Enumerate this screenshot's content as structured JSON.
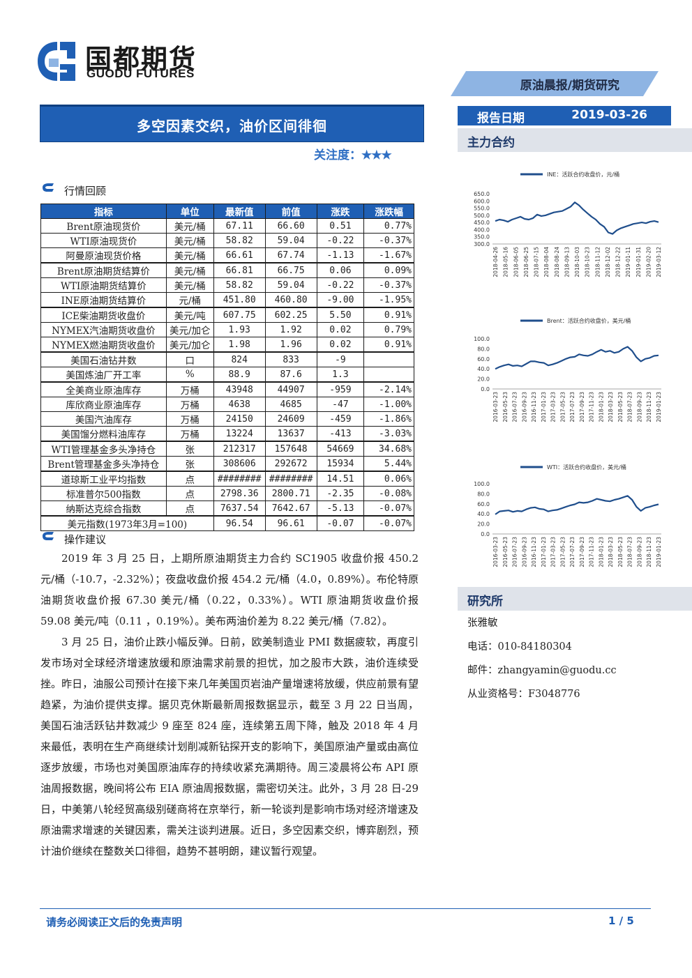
{
  "brand": {
    "name_cn": "国都期货",
    "name_en": "GUODU FUTURES"
  },
  "header": {
    "category": "原油晨报/期货研究",
    "report_title": "多空因素交织，油价区间徘徊",
    "attention_label": "关注度：",
    "attention_stars": "★★★",
    "date_label": "报告日期",
    "date_value": "2019-03-26"
  },
  "sections": {
    "market_review": "行情回顾",
    "operation_advice": "操作建议",
    "main_contract": "主力合约",
    "research": "研究所"
  },
  "table": {
    "headers": [
      "指标",
      "单位",
      "最新值",
      "前值",
      "涨跌",
      "涨跌幅"
    ],
    "rows": [
      [
        "Brent原油现货价",
        "美元/桶",
        "67.11",
        "66.60",
        "0.51",
        "0.77%"
      ],
      [
        "WTI原油现货价",
        "美元/桶",
        "58.82",
        "59.04",
        "-0.22",
        "-0.37%"
      ],
      [
        "阿曼原油现货价格",
        "美元/桶",
        "66.61",
        "67.74",
        "-1.13",
        "-1.67%"
      ],
      [
        "Brent原油期货结算价",
        "美元/桶",
        "66.81",
        "66.75",
        "0.06",
        "0.09%"
      ],
      [
        "WTI原油期货结算价",
        "美元/桶",
        "58.82",
        "59.04",
        "-0.22",
        "-0.37%"
      ],
      [
        "INE原油期货结算价",
        "元/桶",
        "451.80",
        "460.80",
        "-9.00",
        "-1.95%"
      ],
      [
        "ICE柴油期货收盘价",
        "美元/吨",
        "607.75",
        "602.25",
        "5.50",
        "0.91%"
      ],
      [
        "NYMEX汽油期货收盘价",
        "美元/加仑",
        "1.93",
        "1.92",
        "0.02",
        "0.79%"
      ],
      [
        "NYMEX燃油期货收盘价",
        "美元/加仑",
        "1.98",
        "1.96",
        "0.02",
        "0.91%"
      ],
      [
        "美国石油钻井数",
        "口",
        "824",
        "833",
        "-9",
        ""
      ],
      [
        "美国炼油厂开工率",
        "%",
        "88.9",
        "87.6",
        "1.3",
        ""
      ],
      [
        "全美商业原油库存",
        "万桶",
        "43948",
        "44907",
        "-959",
        "-2.14%"
      ],
      [
        "库欣商业原油库存",
        "万桶",
        "4638",
        "4685",
        "-47",
        "-1.00%"
      ],
      [
        "美国汽油库存",
        "万桶",
        "24150",
        "24609",
        "-459",
        "-1.86%"
      ],
      [
        "美国馏分燃料油库存",
        "万桶",
        "13224",
        "13637",
        "-413",
        "-3.03%"
      ],
      [
        "WTI管理基金多头净持仓",
        "张",
        "212317",
        "157648",
        "54669",
        "34.68%"
      ],
      [
        "Brent管理基金多头净持仓",
        "张",
        "308606",
        "292672",
        "15934",
        "5.44%"
      ],
      [
        "道琼斯工业平均指数",
        "点",
        "########",
        "########",
        "14.51",
        "0.06%"
      ],
      [
        "标准普尔500指数",
        "点",
        "2798.36",
        "2800.71",
        "-2.35",
        "-0.08%"
      ],
      [
        "纳斯达克综合指数",
        "点",
        "7637.54",
        "7642.67",
        "-5.13",
        "-0.07%"
      ]
    ],
    "last_row": [
      "美元指数(1973年3月=100)",
      "96.54",
      "96.61",
      "-0.07",
      "-0.07%"
    ]
  },
  "advice_paragraphs": [
    "2019 年 3 月 25 日，上期所原油期货主力合约 SC1905 收盘价报 450.2 元/桶（-10.7，-2.32%）；夜盘收盘价报 454.2 元/桶（4.0，0.89%）。布伦特原油期货收盘价报 67.30 美元/桶（0.22，0.33%）。WTI 原油期货收盘价报 59.08 美元/吨（0.11 ，0.19%）。美布两油价差为 8.22 美元/桶（7.82）。",
    "3 月 25 日，油价止跌小幅反弹。日前，欧美制造业 PMI 数据疲软，再度引发市场对全球经济增速放缓和原油需求前景的担忧，加之股市大跌，油价连续受挫。昨日，油服公司预计在接下来几年美国页岩油产量增速将放缓，供应前景有望趋紧，为油价提供支撑。据贝克休斯最新周报数据显示，截至 3 月 22 日当周，美国石油活跃钻井数减少 9 座至 824 座，连续第五周下降，触及 2018 年 4 月来最低，表明在生产商继续计划削减新钻探开支的影响下，美国原油产量或由高位逐步放缓，市场也对美国原油库存的持续收紧充满期待。周三凌晨将公布 API 原油周报数据，晚间将公布 EIA 原油周报数据，需密切关注。此外，3 月 28 日-29 日，中美第八轮经贸高级别磋商将在京举行，新一轮谈判是影响市场对经济增速及原油需求增速的关键因素，需关注谈判进展。近日，多空因素交织，博弈剧烈，预计油价继续在整数关口徘徊，趋势不甚明朗，建议暂行观望。"
  ],
  "contact": {
    "name": "张雅敏",
    "phone": "电话：010-84180304",
    "email": "邮件：zhangyamin@guodu.cc",
    "license": "从业资格号：F3048776"
  },
  "footer": {
    "disclaimer": "请务必阅读正文后的免责声明",
    "page": "1 / 5"
  },
  "colors": {
    "brand_blue": "#1f5fb4",
    "light_blue": "#8eb4e3",
    "line": "#1f4e8c"
  },
  "chart_data": [
    {
      "type": "line",
      "legend": "INE：活跃合约收盘价，元/桶",
      "ylim": [
        300,
        650
      ],
      "yticks": [
        "650.0",
        "600.0",
        "550.0",
        "500.0",
        "450.0",
        "400.0",
        "350.0",
        "300.0"
      ],
      "xticks": [
        "2018-04-26",
        "2018-05-16",
        "2018-06-05",
        "2018-06-25",
        "2018-07-15",
        "2018-08-04",
        "2018-08-24",
        "2018-09-13",
        "2018-10-03",
        "2018-10-23",
        "2018-11-12",
        "2018-12-02",
        "2018-12-22",
        "2019-01-11",
        "2019-01-31",
        "2019-02-20",
        "2019-03-12"
      ],
      "values": [
        460,
        470,
        465,
        455,
        470,
        480,
        490,
        475,
        470,
        480,
        505,
        495,
        500,
        510,
        520,
        525,
        530,
        545,
        560,
        590,
        570,
        540,
        515,
        490,
        470,
        440,
        420,
        380,
        370,
        395,
        410,
        420,
        430,
        440,
        445,
        450,
        445,
        455,
        460,
        452
      ]
    },
    {
      "type": "line",
      "legend": "Brent：活跃合约收盘价，美元/桶",
      "ylim": [
        0,
        100
      ],
      "yticks": [
        "100.0",
        "80.0",
        "60.0",
        "40.0",
        "20.0",
        "0.0"
      ],
      "xticks": [
        "2016-03-23",
        "2016-05-23",
        "2016-07-23",
        "2016-09-23",
        "2016-11-23",
        "2017-01-23",
        "2017-03-23",
        "2017-05-23",
        "2017-07-23",
        "2017-09-23",
        "2017-11-23",
        "2018-01-23",
        "2018-03-23",
        "2018-05-23",
        "2018-07-23",
        "2018-09-23",
        "2018-11-23",
        "2019-01-23"
      ],
      "values": [
        40,
        44,
        47,
        49,
        46,
        47,
        45,
        50,
        55,
        55,
        53,
        52,
        47,
        49,
        52,
        56,
        60,
        63,
        64,
        69,
        67,
        66,
        69,
        74,
        78,
        74,
        76,
        72,
        74,
        80,
        84,
        76,
        63,
        55,
        60,
        62,
        66,
        67
      ]
    },
    {
      "type": "line",
      "legend": "WTI：活跃合约收盘价，美元/桶",
      "ylim": [
        0,
        100
      ],
      "yticks": [
        "100.0",
        "80.0",
        "60.0",
        "40.0",
        "20.0",
        "0.0"
      ],
      "xticks": [
        "2016-03-23",
        "2016-05-23",
        "2016-07-23",
        "2016-09-23",
        "2016-11-23",
        "2017-01-23",
        "2017-03-23",
        "2017-05-23",
        "2017-07-23",
        "2017-09-23",
        "2017-11-23",
        "2018-01-23",
        "2018-03-23",
        "2018-05-23",
        "2018-07-23",
        "2018-09-23",
        "2018-11-23",
        "2019-01-23"
      ],
      "values": [
        39,
        45,
        46,
        47,
        44,
        46,
        45,
        49,
        52,
        53,
        50,
        49,
        45,
        47,
        48,
        51,
        54,
        57,
        59,
        63,
        62,
        63,
        66,
        70,
        68,
        66,
        65,
        68,
        70,
        73,
        76,
        68,
        54,
        46,
        52,
        54,
        57,
        59
      ]
    }
  ]
}
